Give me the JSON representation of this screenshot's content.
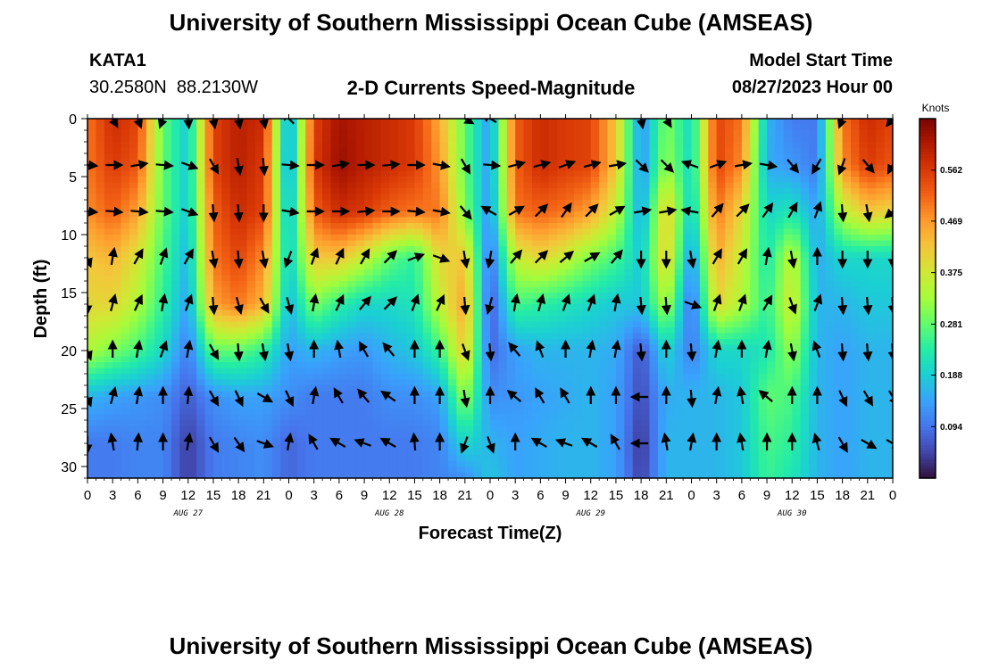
{
  "header": {
    "title": "University of Southern Mississippi Ocean Cube (AMSEAS)",
    "station_id": "KATA1",
    "station_coords": "30.2580N  88.2130W",
    "subtitle": "2-D Currents Speed-Magnitude",
    "model_start_label": "Model Start Time",
    "model_start_value": "08/27/2023 Hour 00"
  },
  "footer": {
    "title": "University of Southern Mississippi Ocean Cube (AMSEAS)"
  },
  "chart_data": {
    "type": "heatmap",
    "title": "2-D Currents Speed-Magnitude",
    "xlabel": "Forecast Time(Z)",
    "ylabel": "Depth (ft)",
    "xlim": [
      0,
      96
    ],
    "ylim": [
      0,
      31
    ],
    "x_tick_values": [
      0,
      3,
      6,
      9,
      12,
      15,
      18,
      21,
      24,
      27,
      30,
      33,
      36,
      39,
      42,
      45,
      48,
      51,
      54,
      57,
      60,
      63,
      66,
      69,
      72,
      75,
      78,
      81,
      84,
      87,
      90,
      93,
      96
    ],
    "x_tick_labels": [
      "0",
      "3",
      "6",
      "9",
      "12",
      "15",
      "18",
      "21",
      "0",
      "3",
      "6",
      "9",
      "12",
      "15",
      "18",
      "21",
      "0",
      "3",
      "6",
      "9",
      "12",
      "15",
      "18",
      "21",
      "0",
      "3",
      "6",
      "9",
      "12",
      "15",
      "18",
      "21",
      "0"
    ],
    "y_ticks": [
      0,
      5,
      10,
      15,
      20,
      25,
      30
    ],
    "y_tick_labels": [
      "0",
      "5",
      "10",
      "15",
      "20",
      "25",
      "30"
    ],
    "date_labels": [
      {
        "hour": 12,
        "text": "AUG 27"
      },
      {
        "hour": 36,
        "text": "AUG 28"
      },
      {
        "hour": 60,
        "text": "AUG 29"
      },
      {
        "hour": 84,
        "text": "AUG 30"
      }
    ],
    "colorbar": {
      "label": "Knots",
      "min": 0.0,
      "max": 0.656,
      "tick_values": [
        0.094,
        0.188,
        0.281,
        0.375,
        0.469,
        0.562
      ],
      "tick_labels": [
        "0.094",
        "0.188",
        "0.281",
        "0.375",
        "0.469",
        "0.562"
      ],
      "colors": [
        "#30123b",
        "#4145ab",
        "#4675ed",
        "#39a2fc",
        "#1bcfd4",
        "#24eca6",
        "#61fc6c",
        "#a4fc3b",
        "#d1e834",
        "#f3c63a",
        "#fe9b2d",
        "#f36315",
        "#d93806",
        "#b11901",
        "#7a0402"
      ]
    },
    "speed_grid": {
      "columns": 33,
      "column_hours": [
        0,
        3,
        6,
        9,
        12,
        15,
        18,
        21,
        24,
        27,
        30,
        33,
        36,
        39,
        42,
        45,
        48,
        51,
        54,
        57,
        60,
        63,
        66,
        69,
        72,
        75,
        78,
        81,
        84,
        87,
        90,
        93,
        96
      ],
      "depths": [
        0,
        4,
        8,
        12,
        16,
        20,
        24,
        28,
        31
      ],
      "rows": [
        [
          0.5,
          0.58,
          0.55,
          0.28,
          0.18,
          0.55,
          0.6,
          0.58,
          0.12,
          0.55,
          0.62,
          0.6,
          0.58,
          0.56,
          0.45,
          0.28,
          0.13,
          0.52,
          0.58,
          0.56,
          0.55,
          0.42,
          0.12,
          0.3,
          0.2,
          0.55,
          0.5,
          0.16,
          0.1,
          0.1,
          0.5,
          0.58,
          0.55
        ],
        [
          0.5,
          0.56,
          0.53,
          0.28,
          0.18,
          0.55,
          0.6,
          0.56,
          0.12,
          0.56,
          0.63,
          0.6,
          0.58,
          0.56,
          0.47,
          0.28,
          0.13,
          0.52,
          0.58,
          0.56,
          0.55,
          0.42,
          0.12,
          0.32,
          0.2,
          0.55,
          0.48,
          0.15,
          0.13,
          0.1,
          0.48,
          0.56,
          0.53
        ],
        [
          0.48,
          0.52,
          0.46,
          0.28,
          0.18,
          0.52,
          0.58,
          0.55,
          0.15,
          0.52,
          0.58,
          0.56,
          0.52,
          0.5,
          0.5,
          0.3,
          0.12,
          0.5,
          0.52,
          0.5,
          0.46,
          0.36,
          0.14,
          0.42,
          0.18,
          0.5,
          0.4,
          0.2,
          0.22,
          0.14,
          0.35,
          0.42,
          0.4
        ],
        [
          0.42,
          0.44,
          0.38,
          0.26,
          0.16,
          0.5,
          0.55,
          0.48,
          0.18,
          0.42,
          0.42,
          0.36,
          0.28,
          0.24,
          0.4,
          0.42,
          0.08,
          0.36,
          0.4,
          0.36,
          0.3,
          0.26,
          0.18,
          0.42,
          0.12,
          0.45,
          0.36,
          0.22,
          0.36,
          0.15,
          0.2,
          0.2,
          0.2
        ],
        [
          0.4,
          0.4,
          0.34,
          0.24,
          0.14,
          0.46,
          0.5,
          0.44,
          0.16,
          0.3,
          0.24,
          0.2,
          0.2,
          0.22,
          0.36,
          0.46,
          0.06,
          0.26,
          0.24,
          0.22,
          0.2,
          0.18,
          0.18,
          0.34,
          0.08,
          0.4,
          0.34,
          0.24,
          0.38,
          0.16,
          0.16,
          0.18,
          0.18
        ],
        [
          0.34,
          0.3,
          0.26,
          0.2,
          0.1,
          0.28,
          0.28,
          0.24,
          0.14,
          0.16,
          0.14,
          0.13,
          0.16,
          0.18,
          0.25,
          0.42,
          0.08,
          0.14,
          0.16,
          0.16,
          0.16,
          0.15,
          0.06,
          0.2,
          0.1,
          0.2,
          0.2,
          0.22,
          0.32,
          0.16,
          0.14,
          0.16,
          0.16
        ],
        [
          0.16,
          0.14,
          0.13,
          0.12,
          0.07,
          0.12,
          0.14,
          0.14,
          0.12,
          0.1,
          0.1,
          0.1,
          0.12,
          0.12,
          0.14,
          0.32,
          0.12,
          0.13,
          0.14,
          0.15,
          0.16,
          0.14,
          0.05,
          0.15,
          0.16,
          0.16,
          0.18,
          0.28,
          0.26,
          0.16,
          0.14,
          0.16,
          0.16
        ],
        [
          0.1,
          0.1,
          0.11,
          0.11,
          0.04,
          0.1,
          0.11,
          0.12,
          0.08,
          0.1,
          0.1,
          0.1,
          0.1,
          0.1,
          0.11,
          0.2,
          0.16,
          0.14,
          0.15,
          0.16,
          0.16,
          0.14,
          0.03,
          0.16,
          0.16,
          0.16,
          0.18,
          0.26,
          0.24,
          0.16,
          0.14,
          0.16,
          0.16
        ],
        [
          0.1,
          0.1,
          0.11,
          0.11,
          0.04,
          0.1,
          0.11,
          0.12,
          0.08,
          0.1,
          0.1,
          0.1,
          0.1,
          0.1,
          0.11,
          0.12,
          0.18,
          0.14,
          0.15,
          0.16,
          0.16,
          0.14,
          0.04,
          0.16,
          0.16,
          0.16,
          0.18,
          0.25,
          0.22,
          0.16,
          0.14,
          0.16,
          0.16
        ]
      ]
    },
    "vector_depths": [
      0,
      4,
      8,
      12,
      16,
      20,
      24,
      28
    ],
    "vector_directions_deg": [
      [
        null,
        150,
        160,
        200,
        175,
        170,
        170,
        170,
        315,
        null,
        null,
        null,
        null,
        null,
        null,
        120,
        300,
        null,
        null,
        null,
        null,
        null,
        170,
        150,
        null,
        null,
        null,
        null,
        null,
        null,
        200,
        null,
        220
      ],
      [
        95,
        90,
        80,
        95,
        110,
        150,
        170,
        175,
        95,
        90,
        80,
        90,
        85,
        90,
        100,
        150,
        95,
        75,
        75,
        70,
        75,
        80,
        135,
        135,
        290,
        70,
        80,
        100,
        140,
        210,
        200,
        140,
        210
      ],
      [
        95,
        95,
        95,
        95,
        110,
        175,
        175,
        180,
        100,
        90,
        90,
        85,
        90,
        95,
        100,
        140,
        300,
        60,
        45,
        35,
        45,
        60,
        80,
        80,
        280,
        40,
        45,
        35,
        30,
        20,
        175,
        170,
        230
      ],
      [
        160,
        10,
        30,
        20,
        30,
        170,
        175,
        170,
        200,
        20,
        25,
        30,
        45,
        70,
        110,
        170,
        190,
        40,
        45,
        50,
        60,
        40,
        180,
        180,
        170,
        30,
        30,
        10,
        170,
        0,
        180,
        180,
        180
      ],
      [
        180,
        15,
        25,
        10,
        20,
        175,
        165,
        150,
        165,
        10,
        25,
        40,
        45,
        20,
        25,
        175,
        195,
        10,
        15,
        20,
        20,
        10,
        175,
        175,
        110,
        20,
        20,
        30,
        160,
        20,
        175,
        175,
        175
      ],
      [
        160,
        0,
        10,
        20,
        10,
        150,
        175,
        170,
        170,
        0,
        350,
        330,
        320,
        0,
        0,
        160,
        175,
        320,
        340,
        0,
        10,
        10,
        175,
        0,
        175,
        10,
        0,
        10,
        170,
        340,
        175,
        175,
        175
      ],
      [
        160,
        15,
        10,
        0,
        5,
        150,
        155,
        120,
        155,
        10,
        330,
        320,
        305,
        0,
        0,
        170,
        0,
        310,
        330,
        330,
        0,
        0,
        270,
        0,
        175,
        10,
        350,
        310,
        0,
        0,
        155,
        150,
        150
      ],
      [
        180,
        350,
        5,
        0,
        10,
        150,
        145,
        110,
        10,
        330,
        300,
        290,
        300,
        355,
        0,
        200,
        160,
        0,
        300,
        290,
        300,
        330,
        270,
        350,
        10,
        0,
        350,
        0,
        0,
        345,
        150,
        120,
        120
      ]
    ]
  }
}
